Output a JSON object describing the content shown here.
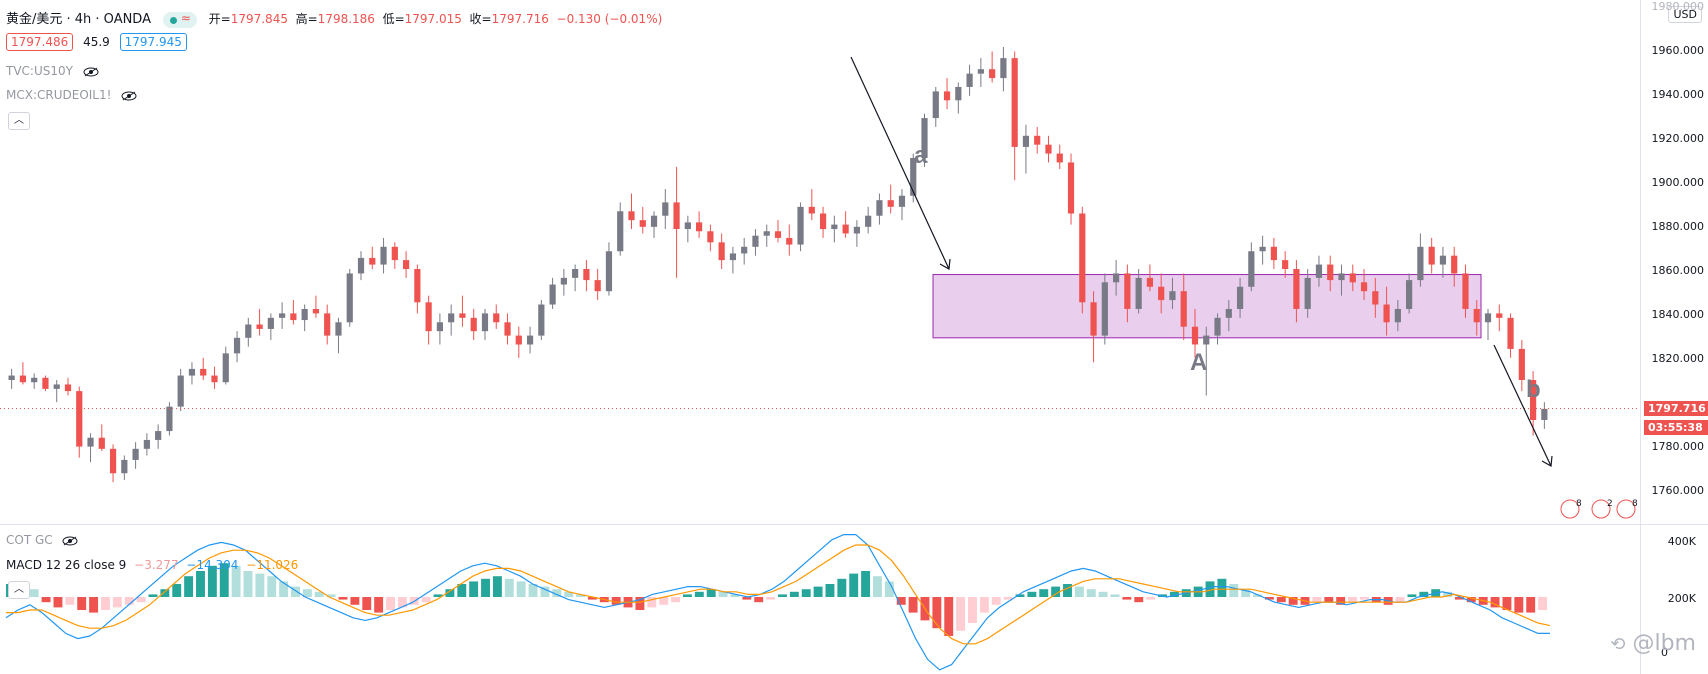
{
  "header": {
    "symbol": "黄金/美元 · 4h · OANDA",
    "ohlc_open_label": "开=",
    "ohlc_open": "1797.845",
    "ohlc_high_label": "高=",
    "ohlc_high": "1798.186",
    "ohlc_low_label": "低=",
    "ohlc_low": "1797.015",
    "ohlc_close_label": "收=",
    "ohlc_close": "1797.716",
    "ohlc_change": "−0.130 (−0.01%)",
    "bid": "1797.486",
    "spread": "45.9",
    "ask": "1797.945",
    "overlay1": "TVC:US10Y",
    "overlay2": "MCX:CRUDEOIL1!"
  },
  "currency_button": "USD",
  "price_axis": [
    "1960.000",
    "1940.000",
    "1920.000",
    "1900.000",
    "1880.000",
    "1860.000",
    "1840.000",
    "1820.000",
    "1780.000",
    "1760.000"
  ],
  "top_axis_partial": "1980.000",
  "last_price": "1797.716",
  "countdown": "03:55:38",
  "annotations": {
    "a": "a",
    "A": "A",
    "b": "b"
  },
  "indicators": {
    "cot": "COT GC",
    "macd_name": "MACD 12 26 close 9",
    "macd_hist": "−3.277",
    "macd_line": "−14.304",
    "macd_signal": "−11.026",
    "axis": [
      "400K",
      "200K",
      "0"
    ]
  },
  "event_badges": [
    "8",
    "2",
    "8"
  ],
  "watermark": "@lbm",
  "colors": {
    "up": "#787b86",
    "down": "#ef5350",
    "box": "#e1bee7",
    "macd": "#2196f3",
    "signal": "#ff9800",
    "hist_up": "#26a69a",
    "hist_down": "#ef5350"
  },
  "chart_data": {
    "type": "candlestick",
    "ylim": [
      1750,
      1985
    ],
    "range_box": {
      "top": 1857.5,
      "bottom": 1829,
      "label": "A"
    },
    "candles_ohlc": [
      [
        1810,
        1815,
        1806,
        1812
      ],
      [
        1812,
        1818,
        1808,
        1809
      ],
      [
        1809,
        1813,
        1806,
        1811
      ],
      [
        1811,
        1812,
        1805,
        1806
      ],
      [
        1806,
        1810,
        1800,
        1808
      ],
      [
        1808,
        1811,
        1803,
        1805
      ],
      [
        1805,
        1807,
        1775,
        1780
      ],
      [
        1780,
        1786,
        1773,
        1784
      ],
      [
        1784,
        1790,
        1778,
        1779
      ],
      [
        1779,
        1781,
        1764,
        1768
      ],
      [
        1768,
        1776,
        1765,
        1774
      ],
      [
        1774,
        1782,
        1770,
        1779
      ],
      [
        1779,
        1786,
        1776,
        1783
      ],
      [
        1783,
        1790,
        1779,
        1787
      ],
      [
        1787,
        1800,
        1785,
        1798
      ],
      [
        1798,
        1815,
        1796,
        1812
      ],
      [
        1812,
        1818,
        1808,
        1815
      ],
      [
        1815,
        1820,
        1810,
        1812
      ],
      [
        1812,
        1816,
        1806,
        1809
      ],
      [
        1809,
        1825,
        1808,
        1822
      ],
      [
        1822,
        1832,
        1818,
        1829
      ],
      [
        1829,
        1838,
        1825,
        1835
      ],
      [
        1835,
        1842,
        1830,
        1833
      ],
      [
        1833,
        1840,
        1828,
        1838
      ],
      [
        1838,
        1845,
        1833,
        1840
      ],
      [
        1840,
        1846,
        1835,
        1837
      ],
      [
        1837,
        1844,
        1832,
        1842
      ],
      [
        1842,
        1848,
        1838,
        1840
      ],
      [
        1840,
        1844,
        1826,
        1830
      ],
      [
        1830,
        1838,
        1822,
        1836
      ],
      [
        1836,
        1860,
        1834,
        1858
      ],
      [
        1858,
        1868,
        1855,
        1865
      ],
      [
        1865,
        1870,
        1860,
        1862
      ],
      [
        1862,
        1874,
        1858,
        1870
      ],
      [
        1870,
        1872,
        1860,
        1864
      ],
      [
        1864,
        1868,
        1856,
        1860
      ],
      [
        1860,
        1862,
        1840,
        1845
      ],
      [
        1845,
        1848,
        1826,
        1832
      ],
      [
        1832,
        1840,
        1826,
        1836
      ],
      [
        1836,
        1844,
        1830,
        1840
      ],
      [
        1840,
        1848,
        1834,
        1838
      ],
      [
        1838,
        1842,
        1828,
        1832
      ],
      [
        1832,
        1842,
        1828,
        1840
      ],
      [
        1840,
        1844,
        1833,
        1836
      ],
      [
        1836,
        1840,
        1826,
        1830
      ],
      [
        1830,
        1834,
        1820,
        1826
      ],
      [
        1826,
        1834,
        1822,
        1830
      ],
      [
        1830,
        1846,
        1828,
        1844
      ],
      [
        1844,
        1856,
        1842,
        1853
      ],
      [
        1853,
        1860,
        1848,
        1856
      ],
      [
        1856,
        1862,
        1850,
        1860
      ],
      [
        1860,
        1864,
        1850,
        1855
      ],
      [
        1855,
        1860,
        1846,
        1850
      ],
      [
        1850,
        1872,
        1848,
        1868
      ],
      [
        1868,
        1890,
        1866,
        1886
      ],
      [
        1886,
        1894,
        1878,
        1882
      ],
      [
        1882,
        1888,
        1876,
        1879
      ],
      [
        1879,
        1886,
        1874,
        1884
      ],
      [
        1884,
        1896,
        1878,
        1890
      ],
      [
        1890,
        1906,
        1856,
        1878
      ],
      [
        1878,
        1884,
        1872,
        1881
      ],
      [
        1881,
        1886,
        1874,
        1877
      ],
      [
        1877,
        1880,
        1868,
        1872
      ],
      [
        1872,
        1876,
        1860,
        1864
      ],
      [
        1864,
        1870,
        1858,
        1867
      ],
      [
        1867,
        1874,
        1862,
        1870
      ],
      [
        1870,
        1878,
        1866,
        1875
      ],
      [
        1875,
        1880,
        1870,
        1877
      ],
      [
        1877,
        1882,
        1872,
        1874
      ],
      [
        1874,
        1880,
        1866,
        1871
      ],
      [
        1871,
        1890,
        1868,
        1888
      ],
      [
        1888,
        1896,
        1882,
        1885
      ],
      [
        1885,
        1888,
        1874,
        1878
      ],
      [
        1878,
        1884,
        1872,
        1880
      ],
      [
        1880,
        1886,
        1874,
        1876
      ],
      [
        1876,
        1882,
        1870,
        1879
      ],
      [
        1879,
        1888,
        1876,
        1884
      ],
      [
        1884,
        1894,
        1880,
        1891
      ],
      [
        1891,
        1898,
        1885,
        1888
      ],
      [
        1888,
        1896,
        1882,
        1893
      ],
      [
        1893,
        1912,
        1890,
        1910
      ],
      [
        1910,
        1930,
        1906,
        1928
      ],
      [
        1928,
        1942,
        1924,
        1940
      ],
      [
        1940,
        1946,
        1932,
        1936
      ],
      [
        1936,
        1944,
        1930,
        1942
      ],
      [
        1942,
        1952,
        1938,
        1948
      ],
      [
        1948,
        1955,
        1942,
        1950
      ],
      [
        1950,
        1958,
        1944,
        1946
      ],
      [
        1946,
        1960,
        1940,
        1955
      ],
      [
        1955,
        1958,
        1900,
        1915
      ],
      [
        1915,
        1925,
        1903,
        1920
      ],
      [
        1920,
        1924,
        1912,
        1916
      ],
      [
        1916,
        1920,
        1908,
        1912
      ],
      [
        1912,
        1916,
        1905,
        1908
      ],
      [
        1908,
        1912,
        1880,
        1885
      ],
      [
        1885,
        1888,
        1840,
        1845
      ],
      [
        1845,
        1850,
        1818,
        1830
      ],
      [
        1830,
        1858,
        1826,
        1854
      ],
      [
        1854,
        1864,
        1848,
        1858
      ],
      [
        1858,
        1862,
        1836,
        1842
      ],
      [
        1842,
        1860,
        1840,
        1856
      ],
      [
        1856,
        1862,
        1850,
        1852
      ],
      [
        1852,
        1858,
        1840,
        1846
      ],
      [
        1846,
        1856,
        1842,
        1850
      ],
      [
        1850,
        1858,
        1828,
        1834
      ],
      [
        1834,
        1842,
        1820,
        1826
      ],
      [
        1826,
        1834,
        1803,
        1830
      ],
      [
        1830,
        1840,
        1826,
        1838
      ],
      [
        1838,
        1846,
        1832,
        1842
      ],
      [
        1842,
        1856,
        1838,
        1852
      ],
      [
        1852,
        1872,
        1850,
        1868
      ],
      [
        1868,
        1875,
        1862,
        1870
      ],
      [
        1870,
        1874,
        1860,
        1864
      ],
      [
        1864,
        1868,
        1856,
        1860
      ],
      [
        1860,
        1864,
        1836,
        1842
      ],
      [
        1842,
        1860,
        1838,
        1856
      ],
      [
        1856,
        1866,
        1852,
        1862
      ],
      [
        1862,
        1866,
        1850,
        1855
      ],
      [
        1855,
        1862,
        1848,
        1858
      ],
      [
        1858,
        1862,
        1850,
        1854
      ],
      [
        1854,
        1860,
        1846,
        1850
      ],
      [
        1850,
        1856,
        1838,
        1844
      ],
      [
        1844,
        1852,
        1830,
        1836
      ],
      [
        1836,
        1846,
        1832,
        1842
      ],
      [
        1842,
        1858,
        1840,
        1855
      ],
      [
        1855,
        1876,
        1852,
        1870
      ],
      [
        1870,
        1874,
        1858,
        1862
      ],
      [
        1862,
        1870,
        1856,
        1866
      ],
      [
        1866,
        1870,
        1852,
        1858
      ],
      [
        1858,
        1862,
        1838,
        1842
      ],
      [
        1842,
        1846,
        1830,
        1836
      ],
      [
        1836,
        1842,
        1828,
        1840
      ],
      [
        1840,
        1844,
        1832,
        1838
      ],
      [
        1838,
        1840,
        1820,
        1824
      ],
      [
        1824,
        1828,
        1805,
        1810
      ],
      [
        1810,
        1814,
        1785,
        1792
      ],
      [
        1792,
        1800,
        1788,
        1797
      ]
    ],
    "macd_hist": [
      5,
      4,
      3,
      -2,
      -4,
      -3,
      -5,
      -6,
      -5,
      -4,
      -3,
      -2,
      1,
      3,
      5,
      8,
      10,
      12,
      13,
      12,
      10,
      9,
      8,
      6,
      4,
      3,
      2,
      1,
      -1,
      -3,
      -5,
      -6,
      -5,
      -4,
      -3,
      -2,
      1,
      3,
      5,
      6,
      7,
      8,
      7,
      6,
      5,
      4,
      3,
      2,
      1,
      -1,
      -2,
      -3,
      -4,
      -5,
      -4,
      -3,
      -2,
      1,
      2,
      3,
      2,
      1,
      -1,
      -2,
      -1,
      1,
      2,
      3,
      4,
      5,
      7,
      9,
      10,
      8,
      6,
      -3,
      -6,
      -9,
      -12,
      -15,
      -13,
      -10,
      -6,
      -3,
      -1,
      1,
      2,
      3,
      4,
      5,
      4,
      3,
      2,
      1,
      -1,
      -2,
      -1,
      1,
      2,
      3,
      4,
      6,
      7,
      5,
      3,
      1,
      -1,
      -2,
      -3,
      -3,
      -2,
      -2,
      -3,
      -2,
      -1,
      -2,
      -3,
      -2,
      1,
      2,
      3,
      2,
      -1,
      -2,
      -3,
      -4,
      -5,
      -6,
      -6,
      -5
    ],
    "macd_line": [
      -8,
      -5,
      -3,
      -6,
      -10,
      -14,
      -16,
      -15,
      -12,
      -8,
      -4,
      0,
      4,
      8,
      12,
      15,
      18,
      20,
      21,
      20,
      18,
      14,
      10,
      6,
      3,
      0,
      -2,
      -4,
      -6,
      -8,
      -9,
      -8,
      -6,
      -4,
      -2,
      1,
      4,
      7,
      10,
      12,
      13,
      12,
      10,
      8,
      5,
      3,
      1,
      -1,
      -2,
      -3,
      -4,
      -3,
      -2,
      -1,
      1,
      2,
      3,
      4,
      4,
      3,
      2,
      1,
      0,
      1,
      3,
      6,
      10,
      14,
      18,
      22,
      24,
      24,
      20,
      12,
      4,
      -6,
      -16,
      -24,
      -28,
      -26,
      -20,
      -14,
      -8,
      -4,
      -1,
      2,
      4,
      6,
      8,
      10,
      11,
      10,
      8,
      6,
      4,
      2,
      1,
      0,
      1,
      2,
      3,
      4,
      4,
      3,
      2,
      0,
      -2,
      -3,
      -4,
      -3,
      -2,
      -2,
      -3,
      -2,
      -1,
      -1,
      -2,
      -2,
      0,
      1,
      2,
      1,
      -1,
      -3,
      -5,
      -8,
      -10,
      -12,
      -14,
      -14
    ],
    "signal_line": [
      -6,
      -6,
      -5,
      -5,
      -7,
      -9,
      -11,
      -12,
      -12,
      -11,
      -9,
      -6,
      -3,
      1,
      5,
      9,
      12,
      15,
      17,
      18,
      18,
      17,
      15,
      12,
      9,
      6,
      3,
      0,
      -2,
      -4,
      -6,
      -7,
      -7,
      -6,
      -5,
      -3,
      -1,
      2,
      5,
      8,
      10,
      11,
      11,
      10,
      8,
      6,
      4,
      2,
      1,
      0,
      -1,
      -2,
      -2,
      -2,
      -1,
      0,
      1,
      2,
      3,
      3,
      2,
      2,
      1,
      1,
      2,
      4,
      6,
      9,
      12,
      15,
      18,
      20,
      20,
      18,
      14,
      8,
      1,
      -6,
      -12,
      -16,
      -18,
      -18,
      -16,
      -13,
      -10,
      -7,
      -4,
      -1,
      2,
      4,
      6,
      7,
      7,
      7,
      6,
      5,
      4,
      3,
      2,
      2,
      2,
      3,
      3,
      3,
      3,
      2,
      1,
      0,
      -1,
      -2,
      -2,
      -2,
      -2,
      -2,
      -2,
      -2,
      -2,
      -2,
      -1,
      0,
      0,
      1,
      0,
      -1,
      -2,
      -4,
      -6,
      -8,
      -10,
      -11
    ]
  }
}
